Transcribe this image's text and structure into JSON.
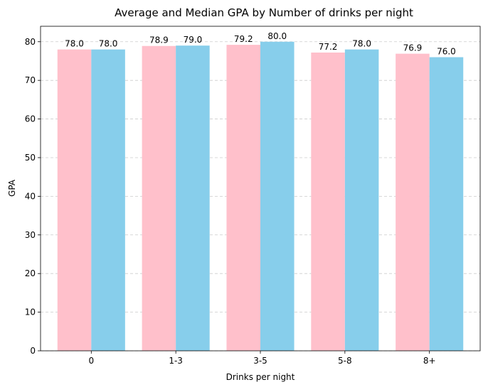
{
  "chart_data": {
    "type": "bar",
    "title": "Average and Median GPA by Number of drinks per night",
    "xlabel": "Drinks per night",
    "ylabel": "GPA",
    "categories": [
      "0",
      "1-3",
      "3-5",
      "5-8",
      "8+"
    ],
    "series": [
      {
        "values": [
          78.0,
          78.9,
          79.2,
          77.2,
          76.9
        ],
        "color": "#FFC0CB"
      },
      {
        "values": [
          78.0,
          79.0,
          80.0,
          78.0,
          76.0
        ],
        "color": "#87CEEB"
      }
    ],
    "data_labels": [
      [
        "78.0",
        "78.9",
        "79.2",
        "77.2",
        "76.9"
      ],
      [
        "78.0",
        "79.0",
        "80.0",
        "78.0",
        "76.0"
      ]
    ],
    "yticks": [
      "0",
      "10",
      "20",
      "30",
      "40",
      "50",
      "60",
      "70",
      "80"
    ],
    "ylim": [
      0,
      84
    ],
    "grid": "y-dashed",
    "legend": "none"
  }
}
